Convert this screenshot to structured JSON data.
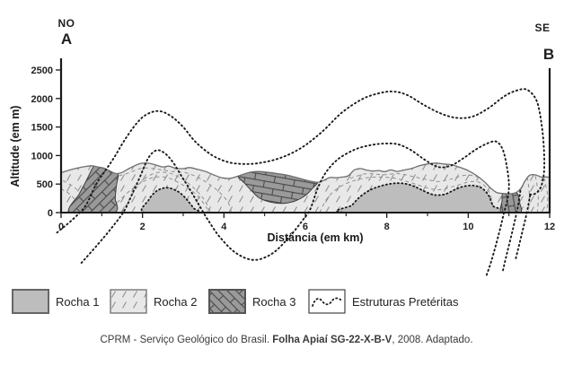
{
  "section": {
    "left_direction": "NO",
    "left_endpoint": "A",
    "right_direction": "SE",
    "right_endpoint": "B",
    "y_axis": {
      "label": "Altitude (em m)",
      "ticks": [
        0,
        500,
        1000,
        1500,
        2000,
        2500
      ],
      "range": [
        0,
        2500
      ]
    },
    "x_axis": {
      "label": "Distância (em km)",
      "major_ticks": [
        0,
        2,
        4,
        6,
        8,
        10,
        12
      ],
      "minor_ticks": [
        1,
        3,
        5,
        7,
        9,
        11
      ],
      "range": [
        0,
        12
      ]
    }
  },
  "legend": {
    "items": [
      {
        "label": "Rocha 1",
        "swatch": "rocha1"
      },
      {
        "label": "Rocha 2",
        "swatch": "rocha2"
      },
      {
        "label": "Rocha 3",
        "swatch": "rocha3"
      },
      {
        "label": "Estruturas Pretéritas",
        "swatch": "estruturas"
      }
    ]
  },
  "citation": {
    "prefix": "CPRM - Serviço Geológico do Brasil. ",
    "bold": "Folha Apiaí SG-22-X-B-V",
    "suffix": ", 2008. Adaptado."
  },
  "colors": {
    "rocha1_fill": "#bdbdbd",
    "rocha2_fill": "#e8e8e8",
    "rocha2_dash": "#8f8f8f",
    "rocha3_fill": "#9a9a9a",
    "rocha3_line": "#4a4a4a",
    "terrain_outline": "#6f6f6f",
    "structure_line": "#1a1a1a",
    "axis_color": "#1a1a1a",
    "text_color": "#1f1f1f"
  },
  "geometry": {
    "terrain_surface": [
      [
        0,
        700
      ],
      [
        0.25,
        755
      ],
      [
        0.5,
        795
      ],
      [
        0.75,
        820
      ],
      [
        0.9,
        800
      ],
      [
        1.05,
        780
      ],
      [
        1.2,
        730
      ],
      [
        1.35,
        685
      ],
      [
        1.5,
        705
      ],
      [
        1.7,
        785
      ],
      [
        1.95,
        860
      ],
      [
        2.15,
        865
      ],
      [
        2.35,
        830
      ],
      [
        2.5,
        800
      ],
      [
        2.65,
        815
      ],
      [
        2.8,
        780
      ],
      [
        3.0,
        770
      ],
      [
        3.15,
        790
      ],
      [
        3.35,
        760
      ],
      [
        3.55,
        720
      ],
      [
        3.75,
        660
      ],
      [
        3.95,
        610
      ],
      [
        4.15,
        600
      ],
      [
        4.35,
        640
      ],
      [
        4.6,
        700
      ],
      [
        4.85,
        720
      ],
      [
        5.1,
        705
      ],
      [
        5.35,
        680
      ],
      [
        5.6,
        650
      ],
      [
        5.85,
        600
      ],
      [
        6.1,
        555
      ],
      [
        6.3,
        530
      ],
      [
        6.45,
        565
      ],
      [
        6.6,
        615
      ],
      [
        6.75,
        612
      ],
      [
        6.9,
        622
      ],
      [
        7.05,
        645
      ],
      [
        7.2,
        745
      ],
      [
        7.35,
        772
      ],
      [
        7.5,
        745
      ],
      [
        7.65,
        728
      ],
      [
        7.8,
        737
      ],
      [
        7.95,
        718
      ],
      [
        8.1,
        748
      ],
      [
        8.25,
        722
      ],
      [
        8.4,
        742
      ],
      [
        8.6,
        772
      ],
      [
        8.8,
        822
      ],
      [
        9.0,
        852
      ],
      [
        9.2,
        868
      ],
      [
        9.4,
        852
      ],
      [
        9.6,
        836
      ],
      [
        9.8,
        792
      ],
      [
        10.0,
        736
      ],
      [
        10.2,
        652
      ],
      [
        10.4,
        540
      ],
      [
        10.55,
        430
      ],
      [
        10.7,
        352
      ],
      [
        10.85,
        336
      ],
      [
        11.0,
        330
      ],
      [
        11.1,
        336
      ],
      [
        11.2,
        362
      ],
      [
        11.3,
        432
      ],
      [
        11.4,
        560
      ],
      [
        11.5,
        650
      ],
      [
        11.6,
        666
      ],
      [
        11.7,
        650
      ],
      [
        11.8,
        622
      ],
      [
        11.9,
        626
      ],
      [
        12,
        616
      ]
    ],
    "rocha1_bodies": [
      [
        [
          2.05,
          0
        ],
        [
          2.15,
          220
        ],
        [
          2.3,
          352
        ],
        [
          2.45,
          416
        ],
        [
          2.62,
          436
        ],
        [
          2.8,
          396
        ],
        [
          2.95,
          330
        ],
        [
          3.1,
          220
        ],
        [
          3.25,
          82
        ],
        [
          3.32,
          0
        ]
      ],
      [
        [
          7.0,
          0
        ],
        [
          7.15,
          132
        ],
        [
          7.35,
          282
        ],
        [
          7.6,
          400
        ],
        [
          7.85,
          466
        ],
        [
          8.1,
          506
        ],
        [
          8.3,
          516
        ],
        [
          8.5,
          500
        ],
        [
          8.7,
          452
        ],
        [
          8.9,
          382
        ],
        [
          9.1,
          322
        ],
        [
          9.25,
          306
        ],
        [
          9.45,
          326
        ],
        [
          9.65,
          396
        ],
        [
          9.85,
          452
        ],
        [
          10.05,
          476
        ],
        [
          10.2,
          466
        ],
        [
          10.35,
          422
        ],
        [
          10.5,
          302
        ],
        [
          10.6,
          122
        ],
        [
          10.65,
          0
        ]
      ]
    ],
    "rocha3_bodies": [
      {
        "angle": -45,
        "points": [
          [
            0.22,
            0
          ],
          [
            0.45,
            330
          ],
          [
            0.62,
            560
          ],
          [
            0.78,
            790
          ],
          [
            0.84,
            816
          ],
          [
            0.95,
            796
          ],
          [
            1.1,
            762
          ],
          [
            1.25,
            722
          ],
          [
            1.4,
            672
          ],
          [
            1.36,
            480
          ],
          [
            1.33,
            260
          ],
          [
            1.3,
            0
          ]
        ]
      },
      {
        "angle": 10,
        "points": [
          [
            4.35,
            640
          ],
          [
            4.6,
            700
          ],
          [
            4.85,
            720
          ],
          [
            5.1,
            705
          ],
          [
            5.35,
            680
          ],
          [
            5.6,
            650
          ],
          [
            5.85,
            600
          ],
          [
            6.1,
            555
          ],
          [
            6.3,
            530
          ],
          [
            6.18,
            430
          ],
          [
            6.0,
            300
          ],
          [
            5.75,
            205
          ],
          [
            5.45,
            162
          ],
          [
            5.15,
            182
          ],
          [
            4.88,
            252
          ],
          [
            4.68,
            382
          ],
          [
            4.5,
            520
          ]
        ]
      },
      {
        "angle": 80,
        "points": [
          [
            10.85,
            340
          ],
          [
            11.02,
            328
          ],
          [
            11.2,
            342
          ],
          [
            11.26,
            180
          ],
          [
            11.28,
            0
          ],
          [
            10.82,
            0
          ],
          [
            10.83,
            200
          ]
        ]
      }
    ],
    "structures": [
      [
        [
          -0.1,
          -350
        ],
        [
          0.3,
          -110
        ],
        [
          0.6,
          120
        ],
        [
          0.85,
          480
        ],
        [
          1.05,
          700
        ],
        [
          1.3,
          960
        ],
        [
          1.55,
          1260
        ],
        [
          1.85,
          1560
        ],
        [
          2.1,
          1720
        ],
        [
          2.4,
          1780
        ],
        [
          2.7,
          1690
        ],
        [
          3.0,
          1500
        ],
        [
          3.3,
          1240
        ],
        [
          3.7,
          1010
        ],
        [
          4.1,
          885
        ],
        [
          4.5,
          852
        ],
        [
          4.9,
          872
        ],
        [
          5.4,
          962
        ],
        [
          5.9,
          1135
        ],
        [
          6.4,
          1410
        ],
        [
          6.9,
          1755
        ],
        [
          7.4,
          1990
        ],
        [
          7.8,
          2090
        ],
        [
          8.15,
          2122
        ],
        [
          8.5,
          2062
        ],
        [
          8.9,
          1892
        ],
        [
          9.3,
          1745
        ],
        [
          9.7,
          1662
        ],
        [
          10.1,
          1682
        ],
        [
          10.5,
          1832
        ],
        [
          10.9,
          2045
        ],
        [
          11.2,
          2142
        ],
        [
          11.45,
          2152
        ],
        [
          11.68,
          1960
        ],
        [
          11.8,
          1560
        ],
        [
          11.86,
          1100
        ],
        [
          11.86,
          700
        ],
        [
          11.78,
          440
        ],
        [
          11.64,
          330
        ],
        [
          11.5,
          318
        ]
      ],
      [
        [
          0.5,
          -880
        ],
        [
          0.9,
          -560
        ],
        [
          1.25,
          -260
        ],
        [
          1.55,
          30
        ],
        [
          1.75,
          330
        ],
        [
          1.95,
          645
        ],
        [
          2.15,
          965
        ],
        [
          2.35,
          1092
        ],
        [
          2.55,
          1040
        ],
        [
          2.75,
          880
        ],
        [
          2.95,
          650
        ],
        [
          3.15,
          420
        ],
        [
          3.35,
          180
        ],
        [
          3.6,
          -120
        ],
        [
          3.9,
          -430
        ],
        [
          4.3,
          -710
        ],
        [
          4.75,
          -830
        ],
        [
          5.2,
          -710
        ],
        [
          5.6,
          -430
        ],
        [
          5.95,
          -120
        ],
        [
          6.12,
          60
        ],
        [
          6.3,
          420
        ],
        [
          6.5,
          700
        ],
        [
          6.8,
          935
        ],
        [
          7.2,
          1100
        ],
        [
          7.6,
          1182
        ],
        [
          8.0,
          1212
        ],
        [
          8.3,
          1192
        ],
        [
          8.6,
          1092
        ],
        [
          8.9,
          942
        ],
        [
          9.15,
          832
        ],
        [
          9.35,
          792
        ],
        [
          9.6,
          832
        ],
        [
          9.9,
          962
        ],
        [
          10.2,
          1112
        ],
        [
          10.5,
          1222
        ],
        [
          10.7,
          1242
        ],
        [
          10.85,
          1100
        ],
        [
          10.95,
          800
        ],
        [
          11.0,
          500
        ],
        [
          10.97,
          250
        ],
        [
          10.88,
          0
        ],
        [
          10.75,
          -380
        ],
        [
          10.58,
          -820
        ],
        [
          10.45,
          -1100
        ]
      ],
      [
        [
          11.28,
          380
        ],
        [
          11.22,
          100
        ],
        [
          11.1,
          -280
        ],
        [
          10.95,
          -720
        ],
        [
          10.85,
          -1020
        ]
      ],
      [
        [
          11.52,
          300
        ],
        [
          11.44,
          0
        ],
        [
          11.3,
          -420
        ],
        [
          11.16,
          -830
        ]
      ]
    ],
    "foliation": [
      [
        [
          1.5,
          0
        ],
        [
          1.75,
          320
        ],
        [
          2.0,
          560
        ],
        [
          2.3,
          690
        ],
        [
          2.6,
          700
        ],
        [
          2.9,
          620
        ],
        [
          3.2,
          470
        ],
        [
          3.5,
          240
        ],
        [
          3.68,
          0
        ]
      ],
      [
        [
          1.15,
          0
        ],
        [
          1.5,
          260
        ],
        [
          1.85,
          470
        ],
        [
          2.2,
          600
        ],
        [
          2.55,
          622
        ],
        [
          2.9,
          520
        ],
        [
          3.3,
          330
        ],
        [
          3.58,
          80
        ],
        [
          3.62,
          0
        ]
      ],
      [
        [
          0.05,
          560
        ],
        [
          0.35,
          430
        ],
        [
          0.6,
          230
        ],
        [
          0.75,
          60
        ],
        [
          0.78,
          0
        ]
      ],
      [
        [
          0.0,
          420
        ],
        [
          0.25,
          300
        ],
        [
          0.45,
          120
        ],
        [
          0.52,
          0
        ]
      ],
      [
        [
          1.42,
          645
        ],
        [
          1.7,
          705
        ],
        [
          2.0,
          782
        ],
        [
          2.35,
          762
        ],
        [
          2.7,
          722
        ],
        [
          3.1,
          692
        ],
        [
          3.5,
          562
        ],
        [
          3.85,
          382
        ],
        [
          4.1,
          182
        ],
        [
          4.18,
          0
        ]
      ],
      [
        [
          7.1,
          600
        ],
        [
          7.5,
          682
        ],
        [
          7.9,
          662
        ],
        [
          8.3,
          682
        ],
        [
          8.7,
          622
        ],
        [
          9.1,
          562
        ],
        [
          9.3,
          545
        ],
        [
          9.6,
          592
        ],
        [
          9.9,
          652
        ],
        [
          10.15,
          642
        ],
        [
          10.4,
          562
        ],
        [
          10.55,
          422
        ]
      ],
      [
        [
          6.35,
          0
        ],
        [
          6.55,
          262
        ],
        [
          6.85,
          452
        ],
        [
          7.25,
          572
        ],
        [
          7.7,
          622
        ],
        [
          8.2,
          602
        ],
        [
          8.6,
          522
        ],
        [
          9.0,
          432
        ],
        [
          9.3,
          402
        ],
        [
          9.7,
          472
        ],
        [
          10.05,
          542
        ],
        [
          10.3,
          522
        ],
        [
          10.5,
          382
        ],
        [
          10.6,
          152
        ],
        [
          10.62,
          0
        ]
      ],
      [
        [
          11.45,
          620
        ],
        [
          11.5,
          340
        ],
        [
          11.48,
          0
        ]
      ],
      [
        [
          11.65,
          640
        ],
        [
          11.72,
          320
        ],
        [
          11.7,
          0
        ]
      ],
      [
        [
          11.86,
          612
        ],
        [
          11.95,
          300
        ],
        [
          11.93,
          0
        ]
      ]
    ]
  }
}
